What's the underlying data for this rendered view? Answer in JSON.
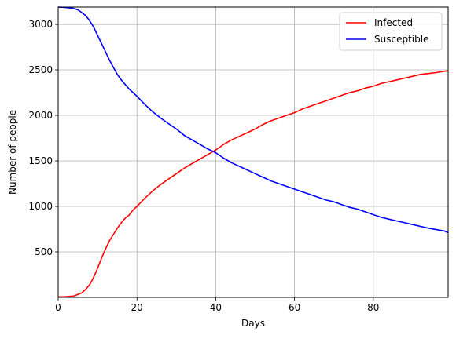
{
  "chart_data": {
    "type": "line",
    "title": "",
    "xlabel": "Days",
    "ylabel": "Number of people",
    "xlim": [
      0,
      99
    ],
    "ylim": [
      0,
      3190
    ],
    "grid": true,
    "legend_position": "top-right",
    "xticks": [
      0,
      20,
      40,
      60,
      80
    ],
    "yticks": [
      500,
      1000,
      1500,
      2000,
      2500,
      3000
    ],
    "series": [
      {
        "name": "Infected",
        "color": "#ff0000",
        "x": [
          0,
          2,
          4,
          6,
          7,
          8,
          9,
          10,
          11,
          12,
          13,
          14,
          15,
          16,
          17,
          18,
          19,
          20,
          22,
          24,
          26,
          28,
          30,
          32,
          34,
          36,
          38,
          40,
          42,
          44,
          46,
          48,
          50,
          52,
          54,
          56,
          58,
          60,
          62,
          64,
          66,
          68,
          70,
          72,
          74,
          76,
          78,
          80,
          82,
          84,
          86,
          88,
          90,
          92,
          94,
          96,
          98,
          99
        ],
        "y": [
          5,
          8,
          15,
          50,
          90,
          140,
          220,
          320,
          430,
          530,
          620,
          690,
          760,
          820,
          870,
          905,
          960,
          1000,
          1090,
          1170,
          1240,
          1300,
          1360,
          1420,
          1470,
          1520,
          1570,
          1620,
          1680,
          1730,
          1770,
          1810,
          1850,
          1900,
          1940,
          1970,
          2000,
          2030,
          2070,
          2100,
          2130,
          2160,
          2190,
          2220,
          2250,
          2270,
          2300,
          2320,
          2350,
          2370,
          2390,
          2410,
          2430,
          2450,
          2460,
          2470,
          2485,
          2490
        ]
      },
      {
        "name": "Susceptible",
        "color": "#0000ff",
        "x": [
          0,
          2,
          4,
          5,
          6,
          7,
          8,
          9,
          10,
          11,
          12,
          13,
          14,
          15,
          16,
          17,
          18,
          19,
          20,
          22,
          24,
          26,
          28,
          30,
          32,
          34,
          36,
          38,
          40,
          42,
          44,
          46,
          48,
          50,
          52,
          54,
          56,
          58,
          60,
          62,
          64,
          66,
          68,
          70,
          72,
          74,
          76,
          78,
          80,
          82,
          84,
          86,
          88,
          90,
          92,
          94,
          96,
          98,
          99
        ],
        "y": [
          3190,
          3185,
          3175,
          3160,
          3130,
          3095,
          3040,
          2970,
          2880,
          2790,
          2700,
          2610,
          2530,
          2450,
          2390,
          2340,
          2290,
          2250,
          2210,
          2120,
          2040,
          1970,
          1910,
          1850,
          1780,
          1730,
          1680,
          1630,
          1590,
          1530,
          1480,
          1440,
          1400,
          1360,
          1320,
          1280,
          1250,
          1220,
          1190,
          1160,
          1130,
          1100,
          1070,
          1050,
          1020,
          990,
          970,
          940,
          910,
          880,
          860,
          840,
          820,
          800,
          780,
          760,
          745,
          730,
          710
        ]
      }
    ]
  }
}
